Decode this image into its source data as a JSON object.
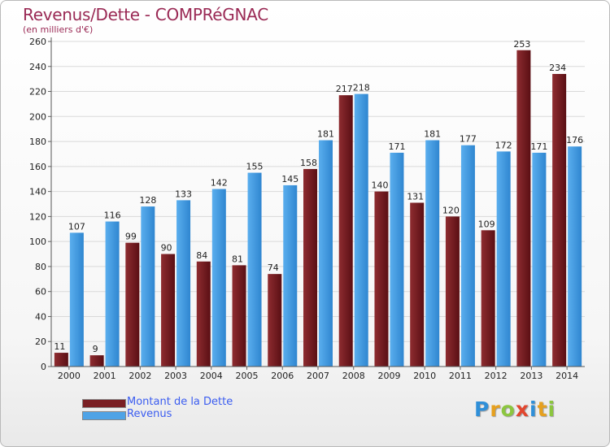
{
  "title": "Revenus/Dette - COMPRéGNAC",
  "subtitle": "(en milliers d'€)",
  "chart_data": {
    "type": "bar",
    "title": "Revenus/Dette - COMPRéGNAC",
    "ylabel": "(en milliers d'€)",
    "xlabel": "",
    "ylim": [
      0,
      260
    ],
    "yticks": [
      0,
      20,
      40,
      60,
      80,
      100,
      120,
      140,
      160,
      180,
      200,
      220,
      240,
      260
    ],
    "grid": true,
    "legend_position": "bottom-left",
    "categories": [
      "2000",
      "2001",
      "2002",
      "2003",
      "2004",
      "2005",
      "2006",
      "2007",
      "2008",
      "2009",
      "2010",
      "2011",
      "2012",
      "2013",
      "2014"
    ],
    "series": [
      {
        "name": "Montant de la Dette",
        "color": "#7a1f24",
        "values": [
          11,
          9,
          99,
          90,
          84,
          81,
          74,
          158,
          217,
          140,
          131,
          120,
          109,
          253,
          234
        ]
      },
      {
        "name": "Revenus",
        "color": "#4fa3e6",
        "values": [
          107,
          116,
          128,
          133,
          142,
          155,
          145,
          181,
          218,
          171,
          181,
          177,
          172,
          171,
          176
        ]
      }
    ]
  },
  "legend": {
    "items": [
      {
        "label": "Montant de la Dette",
        "color": "#7a1f24"
      },
      {
        "label": "Revenus",
        "color": "#4fa3e6"
      }
    ]
  },
  "logo": {
    "letters": [
      "P",
      "r",
      "o",
      "x",
      "i",
      "t",
      "i"
    ],
    "colors": [
      "#2f8fd8",
      "#e6a01e",
      "#8cc63f",
      "#e2462e",
      "#2f8fd8",
      "#e6a01e",
      "#8cc63f"
    ]
  }
}
